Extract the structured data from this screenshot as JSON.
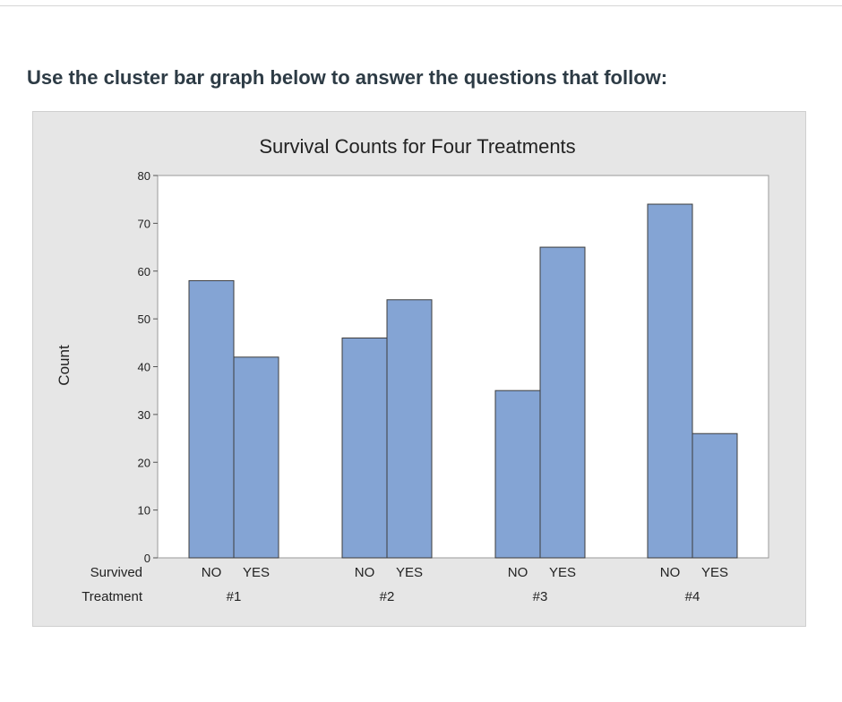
{
  "prompt": "Use the cluster bar graph below to answer the questions that follow:",
  "chart_data": {
    "type": "bar",
    "title": "Survival Counts for Four Treatments",
    "ylabel": "Count",
    "xlabel": "",
    "row_labels": [
      "Survived",
      "Treatment"
    ],
    "ylim": [
      0,
      80
    ],
    "yticks": [
      0,
      10,
      20,
      30,
      40,
      50,
      60,
      70,
      80
    ],
    "grid": false,
    "groups": [
      {
        "name": "#1",
        "bars": [
          {
            "label": "NO",
            "value": 58
          },
          {
            "label": "YES",
            "value": 42
          }
        ]
      },
      {
        "name": "#2",
        "bars": [
          {
            "label": "NO",
            "value": 46
          },
          {
            "label": "YES",
            "value": 54
          }
        ]
      },
      {
        "name": "#3",
        "bars": [
          {
            "label": "NO",
            "value": 35
          },
          {
            "label": "YES",
            "value": 65
          }
        ]
      },
      {
        "name": "#4",
        "bars": [
          {
            "label": "NO",
            "value": 74
          },
          {
            "label": "YES",
            "value": 26
          }
        ]
      }
    ],
    "colors": {
      "bar": "#84a4d4",
      "bar_edge": "#3c3c3c",
      "plot_bg": "#ffffff",
      "panel_bg": "#e6e6e6"
    }
  }
}
